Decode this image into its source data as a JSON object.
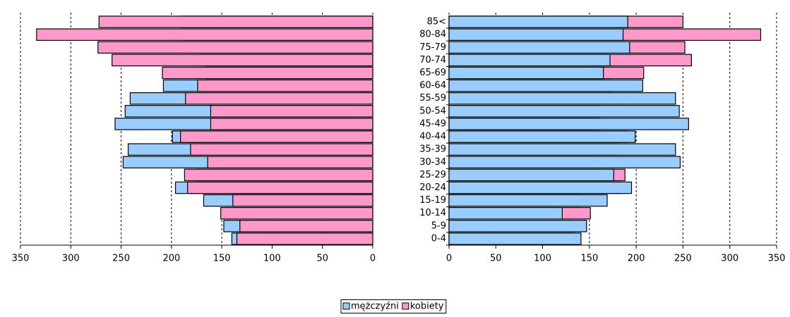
{
  "chart_data": [
    {
      "type": "bar",
      "orientation": "horizontal",
      "overlap": true,
      "draw_order": [
        0,
        1
      ],
      "series": [
        {
          "color": "#99ccff",
          "values": [
            140,
            148,
            121,
            168,
            196,
            176,
            248,
            243,
            199,
            256,
            246,
            241,
            208,
            165,
            172,
            193,
            186,
            191
          ]
        },
        {
          "color": "#ff99cc",
          "values": [
            135,
            132,
            151,
            139,
            184,
            187,
            164,
            181,
            191,
            161,
            161,
            186,
            174,
            209,
            259,
            273,
            334,
            272
          ]
        }
      ],
      "xlim": [
        350,
        0
      ],
      "xticks": [
        350,
        300,
        250,
        200,
        150,
        100,
        50,
        0
      ],
      "grid": true
    },
    {
      "type": "bar",
      "orientation": "horizontal",
      "overlap": true,
      "draw_order": [
        1,
        0
      ],
      "categories": [
        "0-4",
        "5-9",
        "10-14",
        "15-19",
        "20-24",
        "25-29",
        "30-34",
        "35-39",
        "40-44",
        "45-49",
        "50-54",
        "55-59",
        "60-64",
        "65-69",
        "70-74",
        "75-79",
        "80-84",
        "85<"
      ],
      "series": [
        {
          "name": "mężczyźni",
          "color": "#99ccff",
          "values": [
            141,
            147,
            121,
            169,
            195,
            176,
            247,
            242,
            199,
            256,
            246,
            242,
            207,
            165,
            172,
            193,
            186,
            191
          ]
        },
        {
          "name": "kobiety",
          "color": "#ff99cc",
          "values": [
            135,
            132,
            151,
            139,
            184,
            188,
            164,
            181,
            191,
            161,
            161,
            186,
            174,
            208,
            259,
            252,
            333,
            250
          ]
        }
      ],
      "xlim": [
        0,
        350
      ],
      "xticks": [
        0,
        50,
        100,
        150,
        200,
        250,
        300,
        350
      ],
      "grid": true
    }
  ]
}
